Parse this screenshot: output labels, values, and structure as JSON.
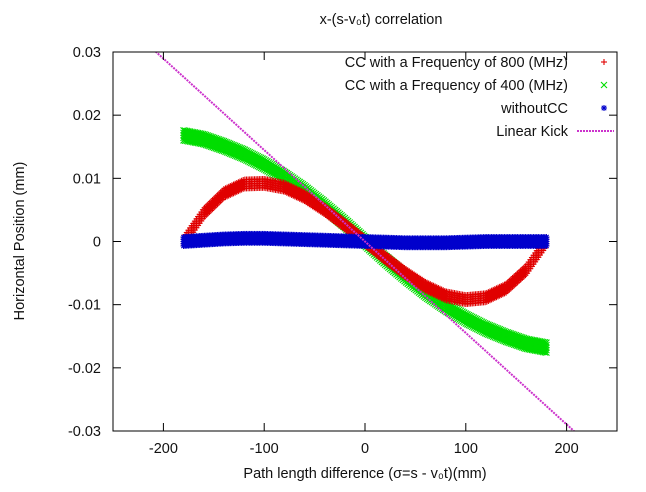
{
  "chart_data": {
    "type": "scatter",
    "title": "x-(s-v₀t) correlation",
    "xlabel": "Path length difference (σ=s - v₀t)(mm)",
    "ylabel": "Horizontal Position (mm)",
    "xlim": [
      -250,
      250
    ],
    "ylim": [
      -0.03,
      0.03
    ],
    "x_ticks": [
      -200,
      -100,
      0,
      100,
      200
    ],
    "y_ticks": [
      -0.03,
      -0.02,
      -0.01,
      0,
      0.01,
      0.02,
      0.03
    ],
    "x_tick_labels": [
      "-200",
      "-100",
      "0",
      "100",
      "200"
    ],
    "y_tick_labels": [
      "-0.03",
      "-0.02",
      "-0.01",
      "0",
      "0.01",
      "0.02",
      "0.03"
    ],
    "grid": false,
    "legend_position": "top-right",
    "series": [
      {
        "name": "CC with a Frequency of 800 (MHz)",
        "marker": "+",
        "color": "#e00000",
        "x": [
          -180,
          -160,
          -140,
          -120,
          -100,
          -80,
          -60,
          -40,
          -20,
          0,
          20,
          40,
          60,
          80,
          100,
          120,
          140,
          160,
          180
        ],
        "y": [
          0.0,
          0.0045,
          0.0076,
          0.0091,
          0.0092,
          0.0086,
          0.0071,
          0.005,
          0.0026,
          0.0,
          -0.0026,
          -0.005,
          -0.0071,
          -0.0086,
          -0.0092,
          -0.0089,
          -0.0074,
          -0.0045,
          0.0
        ],
        "band": 0.0007
      },
      {
        "name": "CC with a Frequency of 400 (MHz)",
        "marker": "x",
        "color": "#00dd00",
        "x": [
          -180,
          -160,
          -140,
          -120,
          -100,
          -80,
          -60,
          -40,
          -20,
          0,
          20,
          40,
          60,
          80,
          100,
          120,
          140,
          160,
          180
        ],
        "y": [
          0.0168,
          0.0162,
          0.0151,
          0.0138,
          0.0122,
          0.0103,
          0.0081,
          0.0056,
          0.0029,
          0.0,
          -0.0029,
          -0.0056,
          -0.0081,
          -0.0103,
          -0.0122,
          -0.0138,
          -0.0151,
          -0.0162,
          -0.0168
        ],
        "band": 0.0008
      },
      {
        "name": "withoutCC",
        "marker": "*",
        "color": "#0000cc",
        "x": [
          -180,
          -160,
          -140,
          -120,
          -100,
          -80,
          -60,
          -40,
          -20,
          0,
          20,
          40,
          60,
          80,
          100,
          120,
          140,
          160,
          180
        ],
        "y": [
          0.0,
          0.0002,
          0.0004,
          0.0005,
          0.0005,
          0.0004,
          0.0003,
          0.0002,
          0.0001,
          0.0,
          -0.0001,
          -0.0002,
          -0.0002,
          -0.0002,
          -0.0001,
          0.0,
          0.0,
          0.0,
          0.0
        ],
        "band": 0.0007
      },
      {
        "name": "Linear Kick",
        "marker": "line",
        "color": "#cc33cc",
        "x": [
          -210,
          210
        ],
        "y": [
          0.0304,
          -0.0304
        ]
      }
    ]
  }
}
